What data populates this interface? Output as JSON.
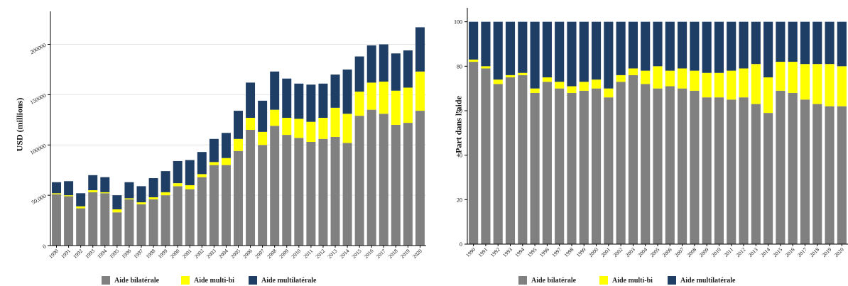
{
  "colors": {
    "bilateral": "#808080",
    "multibi": "#ffff00",
    "multilateral": "#1f3e66",
    "grid": "#e6e6e6",
    "axis": "#000000"
  },
  "legend": [
    "Aide bilatérale",
    "Aide multi-bi",
    "Aide multilatérale"
  ],
  "chart_data": [
    {
      "type": "bar",
      "stacked": true,
      "title": "",
      "ylabel": "USD (millions)",
      "xlabel": "",
      "ylim": [
        0,
        230000
      ],
      "yticks": [
        0,
        50000,
        100000,
        150000,
        200000
      ],
      "ytick_labels": [
        "0",
        "50,000",
        "100000",
        "150000",
        "200000"
      ],
      "grid": true,
      "categories": [
        "1990",
        "1991",
        "1992",
        "1993",
        "1994",
        "1995",
        "1996",
        "1997",
        "1998",
        "1999",
        "2000",
        "2001",
        "2002",
        "2003",
        "2004",
        "2005",
        "2006",
        "2007",
        "2008",
        "2009",
        "2010",
        "2011",
        "2012",
        "2013",
        "2014",
        "2015",
        "2016",
        "2017",
        "2018",
        "2019",
        "2020"
      ],
      "series": [
        {
          "name": "Aide bilatérale",
          "values": [
            51000,
            49000,
            37000,
            53000,
            52000,
            33000,
            46000,
            41000,
            46000,
            50000,
            59000,
            56000,
            68000,
            80000,
            80000,
            94000,
            115000,
            100000,
            119000,
            110000,
            107000,
            103000,
            106000,
            108000,
            102000,
            129000,
            135000,
            131000,
            120000,
            122000,
            134000
          ]
        },
        {
          "name": "Aide multi-bi",
          "values": [
            1000,
            1000,
            2000,
            2000,
            1000,
            3000,
            1000,
            2000,
            2000,
            3000,
            3000,
            4000,
            3000,
            3000,
            7000,
            12000,
            12000,
            13000,
            16000,
            17000,
            19000,
            20000,
            21000,
            29000,
            29000,
            24000,
            27000,
            32000,
            34000,
            35000,
            39000
          ]
        },
        {
          "name": "Aide multilatérale",
          "values": [
            11000,
            14000,
            13000,
            15000,
            15000,
            14000,
            16000,
            16000,
            19000,
            21000,
            22000,
            25000,
            22000,
            23000,
            25000,
            28000,
            35000,
            31000,
            38000,
            39000,
            35000,
            37000,
            34000,
            33000,
            44000,
            35000,
            37000,
            37000,
            37000,
            37000,
            44000
          ]
        }
      ]
    },
    {
      "type": "bar",
      "stacked": true,
      "title": "",
      "ylabel": "Part dans l'aide",
      "xlabel": "",
      "ylim": [
        0,
        105
      ],
      "yticks": [
        0,
        20,
        40,
        60,
        80,
        100
      ],
      "ytick_labels": [
        "0",
        "20",
        "40",
        "60",
        "80",
        "100"
      ],
      "grid": false,
      "categories": [
        "1990",
        "1991",
        "1992",
        "1993",
        "1994",
        "1995",
        "1996",
        "1997",
        "1998",
        "1999",
        "2000",
        "2001",
        "2002",
        "2003",
        "2004",
        "2005",
        "2006",
        "2007",
        "2008",
        "2009",
        "2010",
        "2011",
        "2012",
        "2013",
        "2014",
        "2015",
        "2016",
        "2017",
        "2018",
        "2019",
        "2020"
      ],
      "series": [
        {
          "name": "Aide bilatérale",
          "values": [
            82,
            79,
            72,
            75,
            76,
            68,
            73,
            70,
            68,
            69,
            70,
            66,
            73,
            76,
            72,
            70,
            71,
            70,
            69,
            66,
            66,
            65,
            66,
            63,
            59,
            69,
            68,
            65,
            63,
            62,
            62
          ]
        },
        {
          "name": "Aide multi-bi",
          "values": [
            1,
            1,
            2,
            1,
            1,
            2,
            2,
            3,
            3,
            4,
            4,
            4,
            3,
            3,
            6,
            10,
            7,
            9,
            9,
            11,
            11,
            13,
            13,
            18,
            16,
            13,
            14,
            16,
            18,
            19,
            18
          ]
        },
        {
          "name": "Aide multilatérale",
          "values": [
            17,
            20,
            26,
            24,
            23,
            30,
            25,
            27,
            29,
            27,
            26,
            30,
            24,
            21,
            22,
            20,
            22,
            21,
            22,
            23,
            23,
            22,
            21,
            19,
            25,
            18,
            18,
            19,
            19,
            19,
            20
          ]
        }
      ]
    }
  ]
}
